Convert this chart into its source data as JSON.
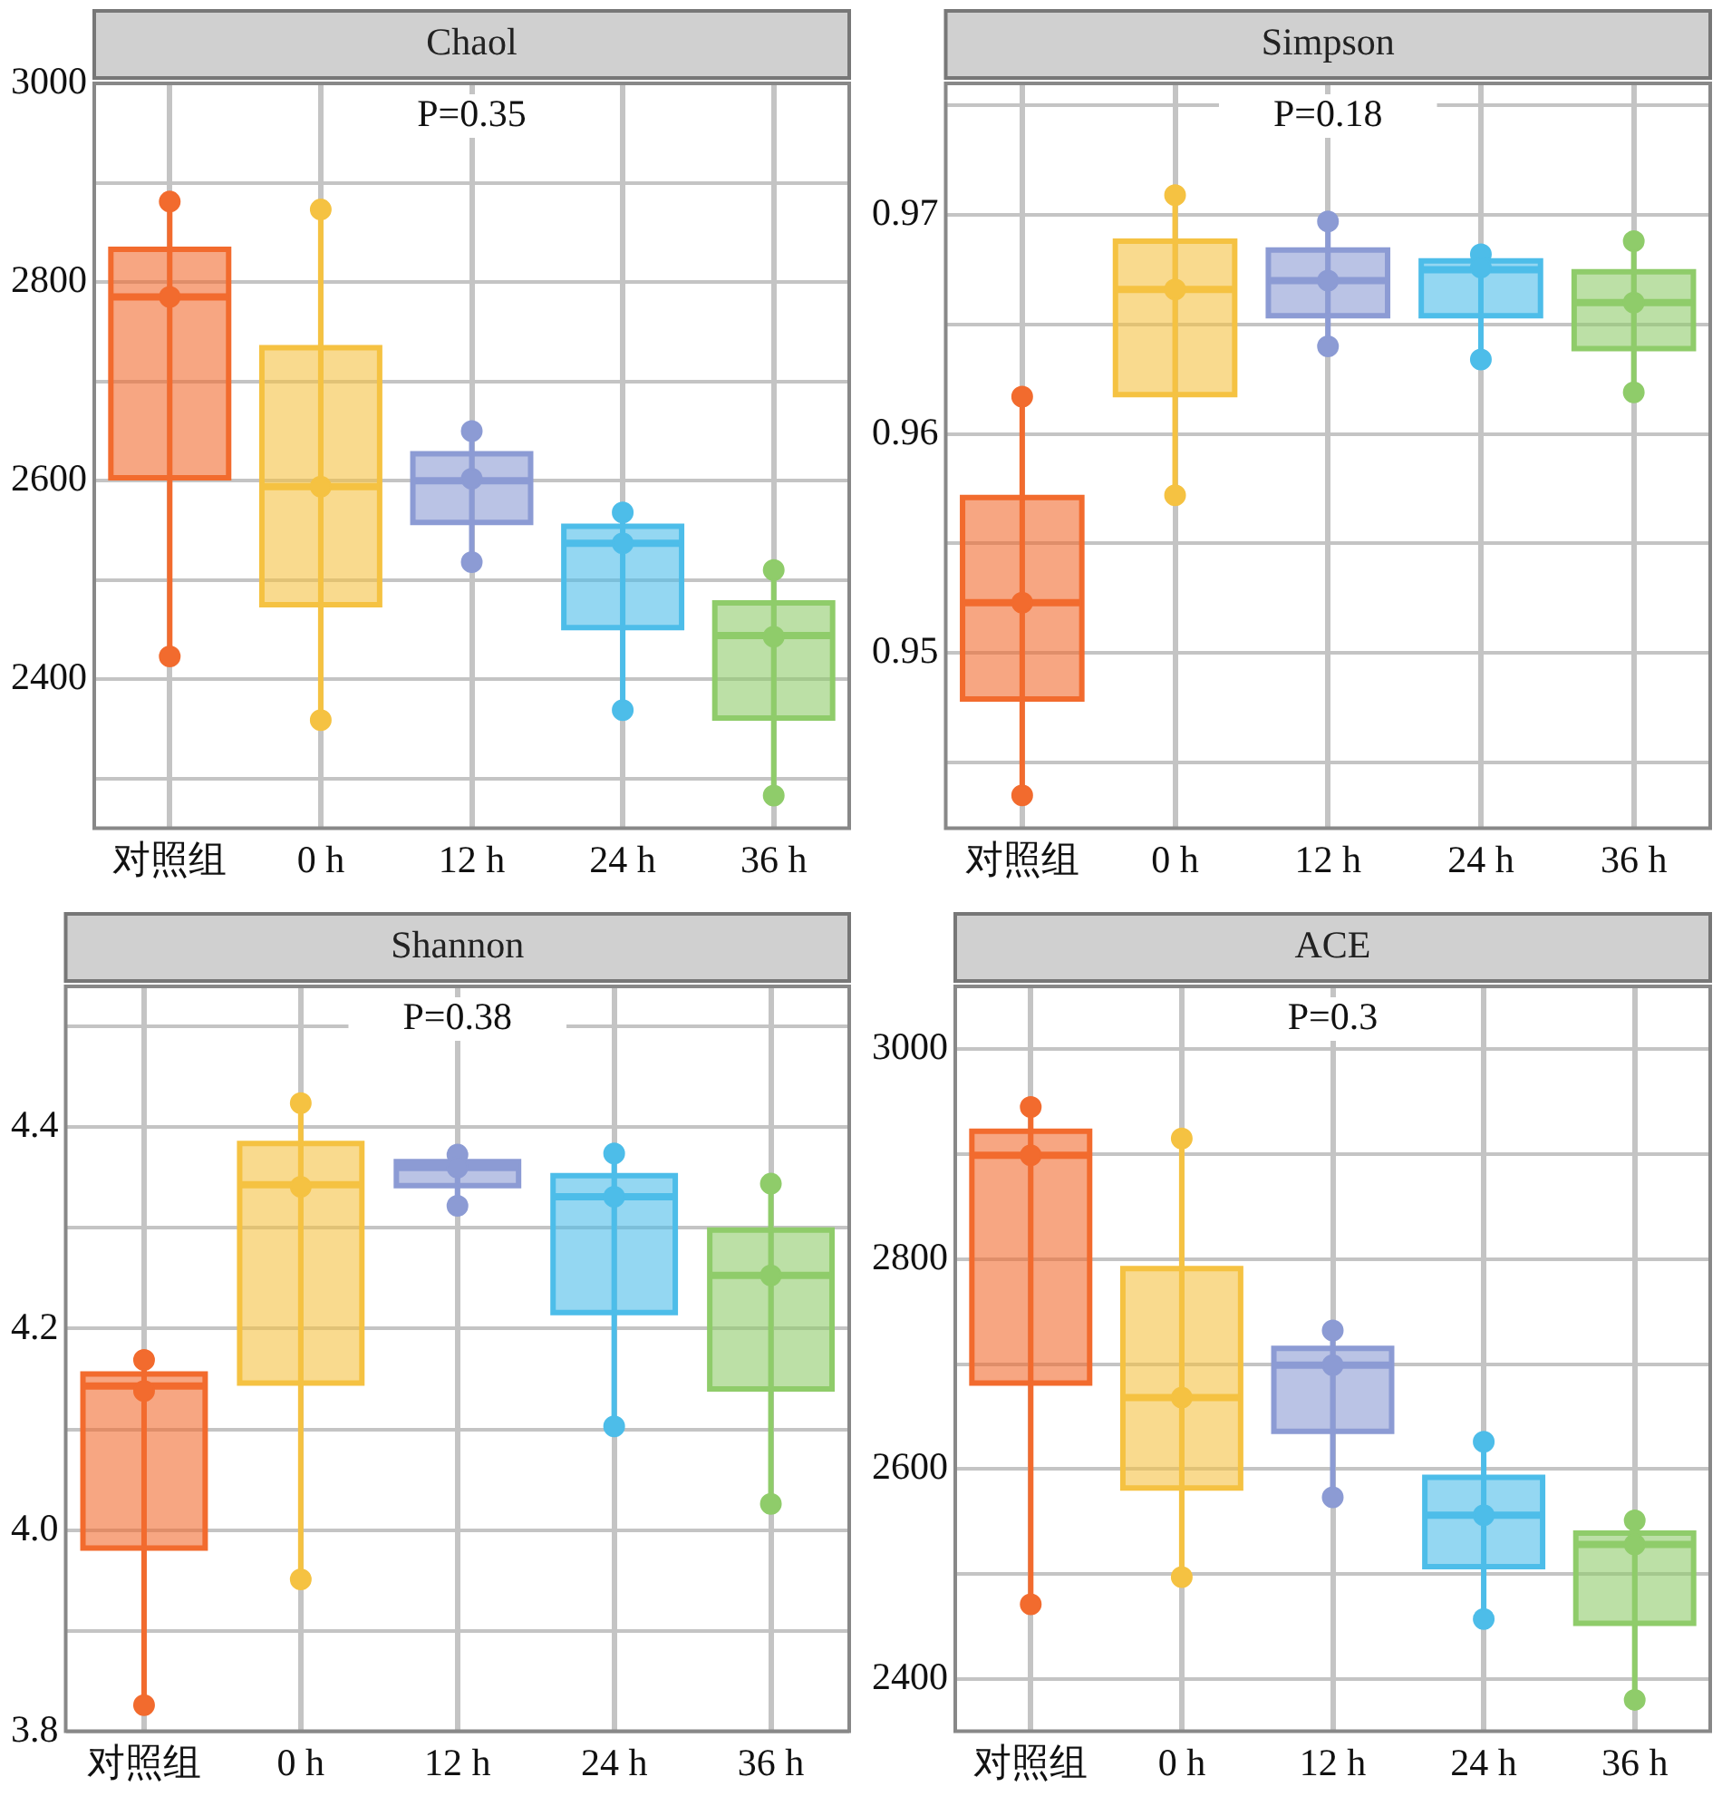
{
  "chart_data": [
    {
      "type": "box",
      "title": "Chaol",
      "annotations": [
        "P=0.35"
      ],
      "categories": [
        "对照组",
        "0 h",
        "12 h",
        "24 h",
        "36 h"
      ],
      "ylim": [
        2250,
        3000
      ],
      "yticks": [
        {
          "value": 2300,
          "label": null
        },
        2400,
        {
          "value": 2500,
          "label": null
        },
        2600,
        {
          "value": 2700,
          "label": null
        },
        2800,
        {
          "value": 2900,
          "label": null
        },
        3000
      ],
      "grid": true,
      "series": [
        {
          "type": "box",
          "colors": [
            "#f26b2e",
            "#f5c242",
            "#8c9bd4",
            "#4dbde9",
            "#8fcc6a"
          ],
          "boxes": [
            {
              "low": 2423,
              "q1": 2603,
              "median": 2785,
              "q3": 2833,
              "high": 2880
            },
            {
              "low": 2359,
              "q1": 2475,
              "median": 2594,
              "q3": 2734,
              "high": 2873
            },
            {
              "low": 2519,
              "q1": 2558,
              "median": 2600,
              "q3": 2627,
              "high": 2650
            },
            {
              "low": 2368,
              "q1": 2452,
              "median": 2537,
              "q3": 2554,
              "high": 2568
            },
            {
              "low": 2280,
              "q1": 2361,
              "median": 2444,
              "q3": 2477,
              "high": 2508
            }
          ]
        },
        {
          "type": "scatter",
          "marker": "circle",
          "x": [
            "对照组",
            "对照组",
            "对照组",
            "0 h",
            "0 h",
            "0 h",
            "12 h",
            "12 h",
            "12 h",
            "24 h",
            "24 h",
            "24 h",
            "36 h",
            "36 h",
            "36 h"
          ],
          "values": [
            2881,
            2785,
            2423,
            2873,
            2594,
            2359,
            2650,
            2602,
            2518,
            2568,
            2537,
            2369,
            2510,
            2443,
            2283
          ],
          "colors": [
            "#f26b2e",
            "#f26b2e",
            "#f26b2e",
            "#f5c242",
            "#f5c242",
            "#f5c242",
            "#8c9bd4",
            "#8c9bd4",
            "#8c9bd4",
            "#4dbde9",
            "#4dbde9",
            "#4dbde9",
            "#8fcc6a",
            "#8fcc6a",
            "#8fcc6a"
          ]
        }
      ]
    },
    {
      "type": "box",
      "title": "Simpson",
      "annotations": [
        "P=0.18"
      ],
      "categories": [
        "对照组",
        "0 h",
        "12 h",
        "24 h",
        "36 h"
      ],
      "ylim": [
        0.942,
        0.976
      ],
      "yticks": [
        {
          "value": 0.945,
          "label": null
        },
        0.95,
        {
          "value": 0.955,
          "label": null
        },
        0.96,
        {
          "value": 0.965,
          "label": null
        },
        0.97,
        {
          "value": 0.975,
          "label": null
        }
      ],
      "grid": true,
      "series": [
        {
          "type": "box",
          "colors": [
            "#f26b2e",
            "#f5c242",
            "#8c9bd4",
            "#4dbde9",
            "#8fcc6a"
          ],
          "boxes": [
            {
              "low": 0.9436,
              "q1": 0.9479,
              "median": 0.9523,
              "q3": 0.9571,
              "high": 0.9617
            },
            {
              "low": 0.9572,
              "q1": 0.9618,
              "median": 0.9666,
              "q3": 0.9688,
              "high": 0.9708
            },
            {
              "low": 0.964,
              "q1": 0.9654,
              "median": 0.967,
              "q3": 0.9684,
              "high": 0.9697
            },
            {
              "low": 0.9634,
              "q1": 0.9654,
              "median": 0.9675,
              "q3": 0.9679,
              "high": 0.9682
            },
            {
              "low": 0.9619,
              "q1": 0.9639,
              "median": 0.966,
              "q3": 0.9674,
              "high": 0.9688
            }
          ]
        },
        {
          "type": "scatter",
          "marker": "circle",
          "x": [
            "对照组",
            "对照组",
            "对照组",
            "0 h",
            "0 h",
            "0 h",
            "12 h",
            "12 h",
            "12 h",
            "24 h",
            "24 h",
            "24 h",
            "36 h",
            "36 h",
            "36 h"
          ],
          "values": [
            0.9617,
            0.9523,
            0.9435,
            0.9709,
            0.9666,
            0.9572,
            0.9697,
            0.967,
            0.964,
            0.9682,
            0.9676,
            0.9634,
            0.9688,
            0.966,
            0.9619
          ],
          "colors": [
            "#f26b2e",
            "#f26b2e",
            "#f26b2e",
            "#f5c242",
            "#f5c242",
            "#f5c242",
            "#8c9bd4",
            "#8c9bd4",
            "#8c9bd4",
            "#4dbde9",
            "#4dbde9",
            "#4dbde9",
            "#8fcc6a",
            "#8fcc6a",
            "#8fcc6a"
          ]
        }
      ]
    },
    {
      "type": "box",
      "title": "Shannon",
      "annotations": [
        "P=0.38"
      ],
      "categories": [
        "对照组",
        "0 h",
        "12 h",
        "24 h",
        "36 h"
      ],
      "ylim": [
        3.8,
        4.54
      ],
      "yticks": [
        {
          "value": 3.8,
          "label": "3.8"
        },
        {
          "value": 3.9,
          "label": null
        },
        {
          "value": 4.0,
          "label": "4.0"
        },
        {
          "value": 4.1,
          "label": null
        },
        {
          "value": 4.2,
          "label": "4.2"
        },
        {
          "value": 4.3,
          "label": null
        },
        {
          "value": 4.4,
          "label": "4.4"
        },
        {
          "value": 4.5,
          "label": null
        }
      ],
      "grid": true,
      "series": [
        {
          "type": "box",
          "colors": [
            "#f26b2e",
            "#f5c242",
            "#8c9bd4",
            "#4dbde9",
            "#8fcc6a"
          ],
          "boxes": [
            {
              "low": 3.826,
              "q1": 3.982,
              "median": 4.143,
              "q3": 4.155,
              "high": 4.169
            },
            {
              "low": 3.951,
              "q1": 4.146,
              "median": 4.343,
              "q3": 4.384,
              "high": 4.424
            },
            {
              "low": 4.322,
              "q1": 4.342,
              "median": 4.36,
              "q3": 4.366,
              "high": 4.374
            },
            {
              "low": 4.103,
              "q1": 4.216,
              "median": 4.331,
              "q3": 4.352,
              "high": 4.374
            },
            {
              "low": 4.026,
              "q1": 4.14,
              "median": 4.253,
              "q3": 4.298,
              "high": 4.344
            }
          ]
        },
        {
          "type": "scatter",
          "marker": "circle",
          "x": [
            "对照组",
            "对照组",
            "对照组",
            "0 h",
            "0 h",
            "0 h",
            "12 h",
            "12 h",
            "12 h",
            "24 h",
            "24 h",
            "24 h",
            "36 h",
            "36 h",
            "36 h"
          ],
          "values": [
            4.169,
            4.138,
            3.826,
            4.424,
            4.341,
            3.951,
            4.373,
            4.36,
            4.322,
            4.374,
            4.331,
            4.103,
            4.344,
            4.253,
            4.026
          ],
          "colors": [
            "#f26b2e",
            "#f26b2e",
            "#f26b2e",
            "#f5c242",
            "#f5c242",
            "#f5c242",
            "#8c9bd4",
            "#8c9bd4",
            "#8c9bd4",
            "#4dbde9",
            "#4dbde9",
            "#4dbde9",
            "#8fcc6a",
            "#8fcc6a",
            "#8fcc6a"
          ]
        }
      ]
    },
    {
      "type": "box",
      "title": "ACE",
      "annotations": [
        "P=0.3"
      ],
      "categories": [
        "对照组",
        "0 h",
        "12 h",
        "24 h",
        "36 h"
      ],
      "ylim": [
        2350,
        3060
      ],
      "yticks": [
        2400,
        {
          "value": 2500,
          "label": null
        },
        2600,
        {
          "value": 2700,
          "label": null
        },
        2800,
        {
          "value": 2900,
          "label": null
        },
        3000
      ],
      "grid": true,
      "series": [
        {
          "type": "box",
          "colors": [
            "#f26b2e",
            "#f5c242",
            "#8c9bd4",
            "#4dbde9",
            "#8fcc6a"
          ],
          "boxes": [
            {
              "low": 2471,
              "q1": 2682,
              "median": 2899,
              "q3": 2922,
              "high": 2945
            },
            {
              "low": 2497,
              "q1": 2582,
              "median": 2668,
              "q3": 2791,
              "high": 2915
            },
            {
              "low": 2573,
              "q1": 2636,
              "median": 2699,
              "q3": 2715,
              "high": 2732
            },
            {
              "low": 2457,
              "q1": 2507,
              "median": 2556,
              "q3": 2592,
              "high": 2626
            },
            {
              "low": 2380,
              "q1": 2453,
              "median": 2528,
              "q3": 2539,
              "high": 2551
            }
          ]
        },
        {
          "type": "scatter",
          "marker": "circle",
          "x": [
            "对照组",
            "对照组",
            "对照组",
            "0 h",
            "0 h",
            "0 h",
            "12 h",
            "12 h",
            "12 h",
            "24 h",
            "24 h",
            "24 h",
            "36 h",
            "36 h",
            "36 h"
          ],
          "values": [
            2945,
            2899,
            2471,
            2915,
            2668,
            2497,
            2732,
            2699,
            2573,
            2626,
            2556,
            2457,
            2551,
            2528,
            2380
          ],
          "colors": [
            "#f26b2e",
            "#f26b2e",
            "#f26b2e",
            "#f5c242",
            "#f5c242",
            "#f5c242",
            "#8c9bd4",
            "#8c9bd4",
            "#8c9bd4",
            "#4dbde9",
            "#4dbde9",
            "#4dbde9",
            "#8fcc6a",
            "#8fcc6a",
            "#8fcc6a"
          ]
        }
      ]
    }
  ]
}
